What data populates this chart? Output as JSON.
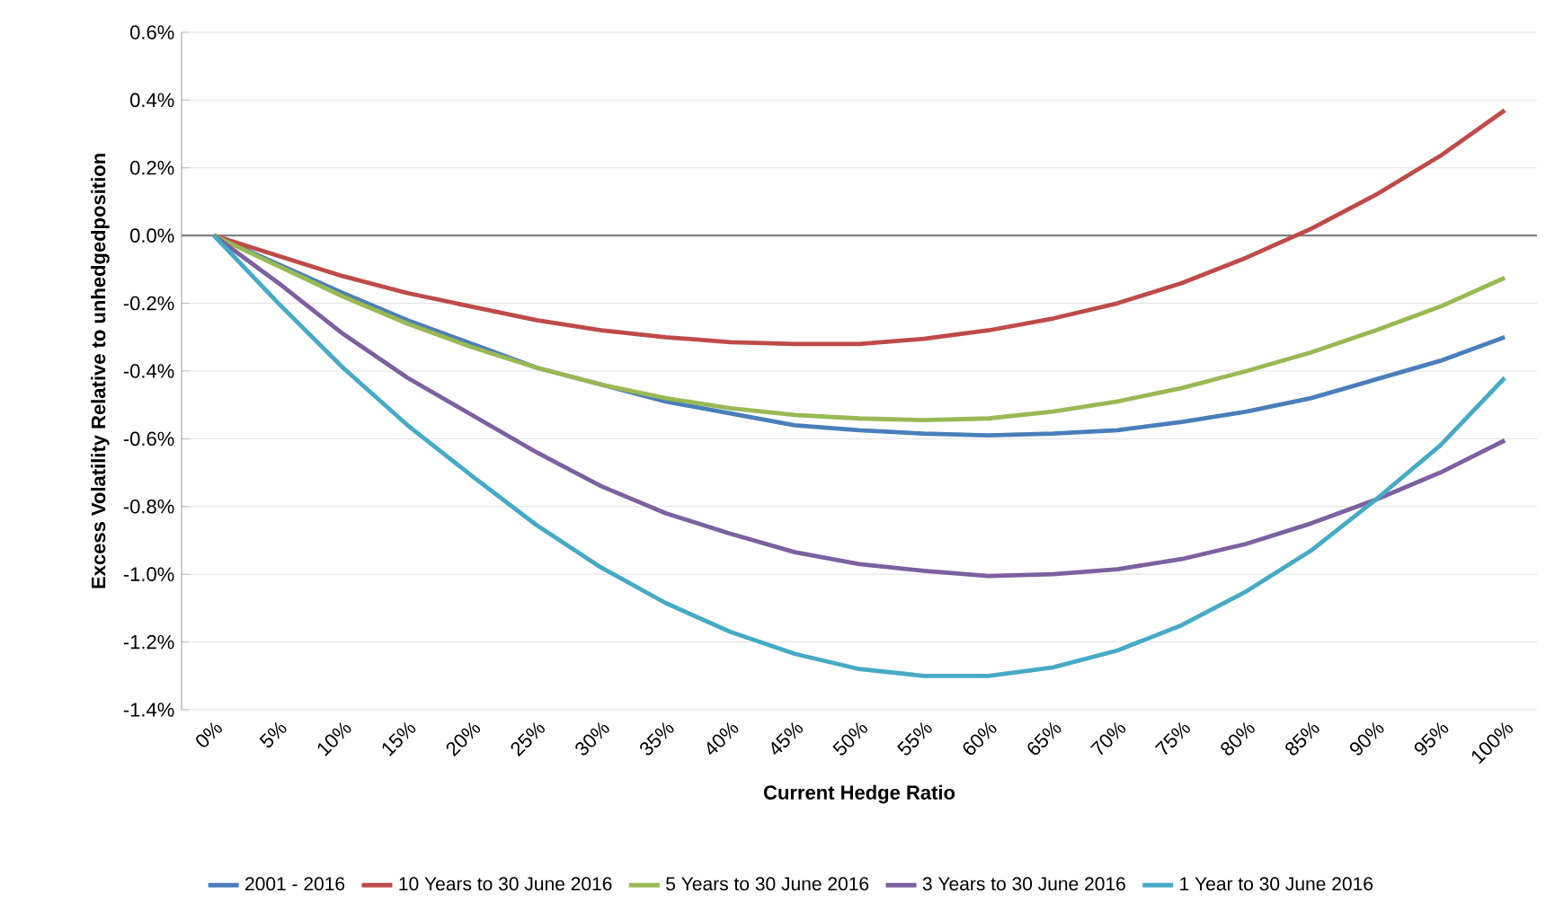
{
  "chart_data": {
    "type": "line",
    "xlabel": "Current Hedge Ratio",
    "ylabel": "Excess Volatility Relative to unhedgedposition",
    "categories": [
      "0%",
      "5%",
      "10%",
      "15%",
      "20%",
      "25%",
      "30%",
      "35%",
      "40%",
      "45%",
      "50%",
      "55%",
      "60%",
      "65%",
      "70%",
      "75%",
      "80%",
      "85%",
      "90%",
      "95%",
      "100%"
    ],
    "series": [
      {
        "name": "2001 - 2016",
        "color": "#4a7ebb",
        "values": [
          0,
          -0.085,
          -0.17,
          -0.25,
          -0.32,
          -0.39,
          -0.44,
          -0.49,
          -0.525,
          -0.56,
          -0.575,
          -0.585,
          -0.59,
          -0.585,
          -0.575,
          -0.55,
          -0.52,
          -0.48,
          -0.425,
          -0.37,
          -0.3
        ]
      },
      {
        "name": "10 Years to 30 June 2016",
        "color": "#be4b48",
        "values": [
          0,
          -0.06,
          -0.12,
          -0.17,
          -0.21,
          -0.25,
          -0.28,
          -0.3,
          -0.315,
          -0.32,
          -0.32,
          -0.305,
          -0.28,
          -0.245,
          -0.2,
          -0.14,
          -0.065,
          0.02,
          0.12,
          0.235,
          0.37
        ]
      },
      {
        "name": "5 Years to 30 June 2016",
        "color": "#98b954",
        "values": [
          0,
          -0.09,
          -0.18,
          -0.26,
          -0.33,
          -0.39,
          -0.44,
          -0.48,
          -0.51,
          -0.53,
          -0.54,
          -0.545,
          -0.54,
          -0.52,
          -0.49,
          -0.45,
          -0.4,
          -0.345,
          -0.28,
          -0.21,
          -0.125
        ]
      },
      {
        "name": "3 Years to 30 June 2016",
        "color": "#7d60a0",
        "values": [
          0,
          -0.14,
          -0.29,
          -0.42,
          -0.53,
          -0.64,
          -0.74,
          -0.82,
          -0.88,
          -0.935,
          -0.97,
          -0.99,
          -1.005,
          -1.0,
          -0.985,
          -0.955,
          -0.91,
          -0.85,
          -0.78,
          -0.7,
          -0.605
        ]
      },
      {
        "name": "1 Year to 30 June 2016",
        "color": "#46aac5",
        "values": [
          0,
          -0.2,
          -0.39,
          -0.56,
          -0.71,
          -0.855,
          -0.98,
          -1.085,
          -1.17,
          -1.235,
          -1.28,
          -1.3,
          -1.3,
          -1.275,
          -1.225,
          -1.15,
          -1.05,
          -0.93,
          -0.78,
          -0.62,
          -0.42
        ]
      }
    ],
    "ylim": [
      -1.4,
      0.6
    ],
    "yticks": [
      {
        "value": 0.6,
        "label": "0.6%"
      },
      {
        "value": 0.4,
        "label": "0.4%"
      },
      {
        "value": 0.2,
        "label": "0.2%"
      },
      {
        "value": 0,
        "label": "0.0%"
      },
      {
        "value": -0.2,
        "label": "-0.2%"
      },
      {
        "value": -0.4,
        "label": "-0.4%"
      },
      {
        "value": -0.6,
        "label": "-0.6%"
      },
      {
        "value": -0.8,
        "label": "-0.8%"
      },
      {
        "value": -1.0,
        "label": "-1.0%"
      },
      {
        "value": -1.2,
        "label": "-1.2%"
      },
      {
        "value": -1.4,
        "label": "-1.4%"
      }
    ],
    "grid": "y",
    "legend": "bottom"
  }
}
